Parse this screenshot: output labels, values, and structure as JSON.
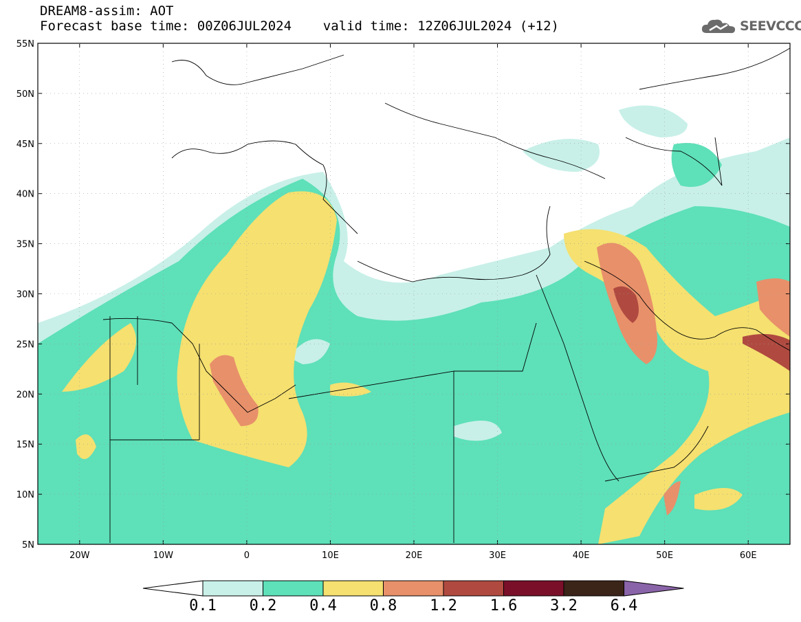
{
  "header": {
    "line1": "DREAM8-assim: AOT",
    "line2": "Forecast base time: 00Z06JUL2024    valid time: 12Z06JUL2024 (+12)"
  },
  "logo": {
    "text": "SEEVCCC",
    "icon": "cloud-icon"
  },
  "map": {
    "lon_range": [
      -25,
      65
    ],
    "lat_range": [
      5,
      55
    ],
    "lat_labels": [
      "55N",
      "50N",
      "45N",
      "40N",
      "35N",
      "30N",
      "25N",
      "20N",
      "15N",
      "10N",
      "5N"
    ],
    "lon_labels": [
      "20W",
      "10W",
      "0",
      "10E",
      "20E",
      "30E",
      "40E",
      "50E",
      "60E"
    ]
  },
  "colorbar": {
    "levels": [
      "0.1",
      "0.2",
      "0.4",
      "0.8",
      "1.2",
      "1.6",
      "3.2",
      "6.4"
    ],
    "colors": [
      "#ffffff",
      "#c8f0e8",
      "#5ee0b8",
      "#f5e070",
      "#e8906a",
      "#b04a40",
      "#7a0f2a",
      "#3b2418",
      "#8a64a8"
    ]
  }
}
